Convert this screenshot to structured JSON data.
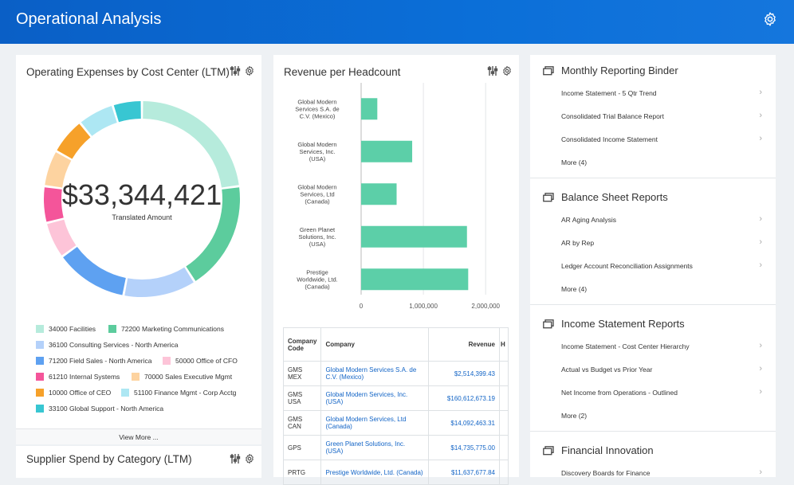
{
  "header": {
    "title": "Operational Analysis"
  },
  "opex": {
    "title": "Operating Expenses by Cost Center (LTM)",
    "amount": "$33,344,421",
    "amount_label": "Translated Amount",
    "view_more": "View More ...",
    "legend": [
      {
        "label": "34000 Facilities",
        "color": "#b6ebdc"
      },
      {
        "label": "72200 Marketing Communications",
        "color": "#5ccc9d"
      },
      {
        "label": "36100 Consulting Services - North America",
        "color": "#b4d1fa"
      },
      {
        "label": "71200 Field Sales - North America",
        "color": "#5ea1f1"
      },
      {
        "label": "50000 Office of CFO",
        "color": "#fdc4d8"
      },
      {
        "label": "61210 Internal Systems",
        "color": "#f4559a"
      },
      {
        "label": "70000 Sales Executive Mgmt",
        "color": "#fdd3a0"
      },
      {
        "label": "10000 Office of CEO",
        "color": "#f6a12a"
      },
      {
        "label": "51100 Finance Mgmt - Corp Acctg",
        "color": "#ade7f3"
      },
      {
        "label": "33100 Global Support - North America",
        "color": "#38c6d2"
      }
    ]
  },
  "supplier": {
    "title": "Supplier Spend by Category (LTM)"
  },
  "revenue": {
    "title": "Revenue per Headcount",
    "table": {
      "headers": [
        "Company Code",
        "Company",
        "Revenue",
        "H"
      ],
      "rows": [
        {
          "code": "GMS MEX",
          "company": "Global Modern Services S.A. de C.V. (Mexico)",
          "revenue": "$2,514,399.43"
        },
        {
          "code": "GMS USA",
          "company": "Global Modern Services, Inc. (USA)",
          "revenue": "$160,612,673.19"
        },
        {
          "code": "GMS CAN",
          "company": "Global Modern Services, Ltd (Canada)",
          "revenue": "$14,092,463.31"
        },
        {
          "code": "GPS",
          "company": "Green Planet Solutions, Inc. (USA)",
          "revenue": "$14,735,775.00"
        },
        {
          "code": "PRTG",
          "company": "Prestige Worldwide, Ltd. (Canada)",
          "revenue": "$11,637,677.84"
        }
      ]
    }
  },
  "chart_data": {
    "type": "bar",
    "orientation": "horizontal",
    "categories": [
      "Global Modern Services S.A. de C.V. (Mexico)",
      "Global Modern Services, Inc. (USA)",
      "Global Modern Services, Ltd (Canada)",
      "Green Planet Solutions, Inc. (USA)",
      "Prestige Worldwide, Ltd. (Canada)"
    ],
    "values": [
      260000,
      820000,
      570000,
      1700000,
      1720000
    ],
    "xlim": [
      0,
      2100000
    ],
    "xticks": [
      "0",
      "1,000,000",
      "2,000,000"
    ],
    "bar_color": "#5ccfa8",
    "donut_values": [
      19,
      15,
      10,
      10,
      5,
      5,
      5,
      5,
      5,
      4
    ]
  },
  "reports": [
    {
      "title": "Monthly Reporting Binder",
      "items": [
        "Income Statement - 5 Qtr Trend",
        "Consolidated Trial Balance Report",
        "Consolidated Income Statement",
        "More (4)"
      ]
    },
    {
      "title": "Balance Sheet Reports",
      "items": [
        "AR Aging Analysis",
        "AR by Rep",
        "Ledger Account Reconciliation Assignments",
        "More (4)"
      ]
    },
    {
      "title": "Income Statement Reports",
      "items": [
        "Income Statement - Cost Center Hierarchy",
        "Actual vs Budget vs Prior Year",
        "Net Income from Operations - Outlined",
        "More (2)"
      ]
    },
    {
      "title": "Financial Innovation",
      "items": [
        "Discovery Boards for Finance"
      ]
    }
  ]
}
